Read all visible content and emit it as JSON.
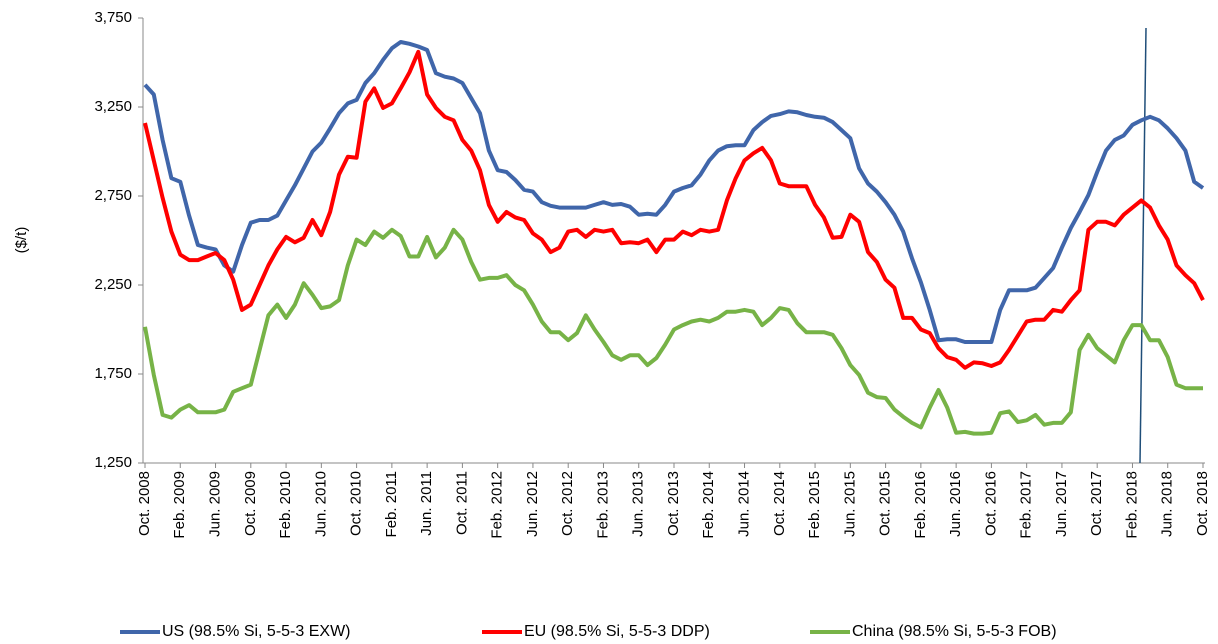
{
  "chart_data": {
    "type": "line",
    "y_label": "($/t)",
    "categories": [
      "Oct. 2008",
      null,
      null,
      null,
      "Feb. 2009",
      null,
      null,
      null,
      "Jun. 2009",
      null,
      null,
      null,
      "Oct. 2009",
      null,
      null,
      null,
      "Feb. 2010",
      null,
      null,
      null,
      "Jun. 2010",
      null,
      null,
      null,
      "Oct. 2010",
      null,
      null,
      null,
      "Feb. 2011",
      null,
      null,
      null,
      "Jun. 2011",
      null,
      null,
      null,
      "Oct. 2011",
      null,
      null,
      null,
      "Feb. 2012",
      null,
      null,
      null,
      "Jun. 2012",
      null,
      null,
      null,
      "Oct. 2012",
      null,
      null,
      null,
      "Feb. 2013",
      null,
      null,
      null,
      "Jun. 2013",
      null,
      null,
      null,
      "Oct. 2013",
      null,
      null,
      null,
      "Feb. 2014",
      null,
      null,
      null,
      "Jun. 2014",
      null,
      null,
      null,
      "Oct. 2014",
      null,
      null,
      null,
      "Feb. 2015",
      null,
      null,
      null,
      "Jun. 2015",
      null,
      null,
      null,
      "Oct. 2015",
      null,
      null,
      null,
      "Feb. 2016",
      null,
      null,
      null,
      "Jun. 2016",
      null,
      null,
      null,
      "Oct. 2016",
      null,
      null,
      null,
      "Feb. 2017",
      null,
      null,
      null,
      "Jun. 2017",
      null,
      null,
      null,
      "Oct. 2017",
      null,
      null,
      null,
      "Feb. 2018",
      null,
      null,
      null,
      "Jun. 2018",
      null,
      null,
      null,
      "Oct. 2018"
    ],
    "series": [
      {
        "name": "US (98.5% Si, 5-5-3 EXW)",
        "color": "#4066aa",
        "values": [
          3375,
          3320,
          3065,
          2850,
          2830,
          2640,
          2475,
          2460,
          2450,
          2360,
          2325,
          2475,
          2600,
          2615,
          2615,
          2640,
          2725,
          2810,
          2905,
          3000,
          3050,
          3130,
          3215,
          3270,
          3290,
          3385,
          3440,
          3515,
          3580,
          3615,
          3605,
          3590,
          3570,
          3440,
          3420,
          3410,
          3385,
          3300,
          3215,
          3005,
          2895,
          2885,
          2840,
          2785,
          2775,
          2715,
          2695,
          2685,
          2685,
          2685,
          2685,
          2700,
          2715,
          2700,
          2705,
          2690,
          2645,
          2650,
          2645,
          2700,
          2775,
          2795,
          2810,
          2870,
          2950,
          3005,
          3030,
          3035,
          3035,
          3120,
          3165,
          3200,
          3210,
          3225,
          3220,
          3205,
          3195,
          3190,
          3165,
          3120,
          3075,
          2905,
          2820,
          2775,
          2715,
          2645,
          2550,
          2400,
          2265,
          2110,
          1940,
          1945,
          1945,
          1930,
          1930,
          1930,
          1930,
          2110,
          2220,
          2220,
          2220,
          2235,
          2290,
          2345,
          2460,
          2570,
          2660,
          2755,
          2885,
          3005,
          3065,
          3090,
          3150,
          3175,
          3195,
          3175,
          3130,
          3075,
          3005,
          2830,
          2795
        ]
      },
      {
        "name": "EU (98.5% Si, 5-5-3 DDP)",
        "color": "#ff0000",
        "values": [
          3160,
          2950,
          2740,
          2550,
          2420,
          2390,
          2390,
          2410,
          2430,
          2390,
          2280,
          2110,
          2140,
          2250,
          2360,
          2450,
          2520,
          2490,
          2515,
          2615,
          2530,
          2660,
          2870,
          2970,
          2965,
          3280,
          3355,
          3245,
          3270,
          3355,
          3445,
          3560,
          3320,
          3245,
          3195,
          3175,
          3065,
          3005,
          2895,
          2700,
          2605,
          2660,
          2630,
          2615,
          2540,
          2505,
          2435,
          2460,
          2550,
          2560,
          2520,
          2560,
          2550,
          2560,
          2485,
          2490,
          2485,
          2505,
          2435,
          2505,
          2505,
          2550,
          2530,
          2560,
          2550,
          2560,
          2725,
          2850,
          2950,
          2990,
          3020,
          2950,
          2820,
          2805,
          2805,
          2805,
          2700,
          2630,
          2515,
          2520,
          2645,
          2605,
          2435,
          2380,
          2280,
          2235,
          2065,
          2065,
          2000,
          1980,
          1895,
          1845,
          1830,
          1785,
          1815,
          1810,
          1795,
          1815,
          1885,
          1965,
          2045,
          2055,
          2055,
          2110,
          2100,
          2165,
          2220,
          2560,
          2605,
          2605,
          2585,
          2645,
          2685,
          2725,
          2685,
          2585,
          2505,
          2360,
          2305,
          2260,
          2165
        ]
      },
      {
        "name": "China (98.5% Si, 5-5-3 FOB)",
        "color": "#77b347",
        "values": [
          2015,
          1745,
          1520,
          1505,
          1550,
          1575,
          1535,
          1535,
          1535,
          1550,
          1650,
          1670,
          1690,
          1885,
          2080,
          2140,
          2065,
          2140,
          2260,
          2195,
          2120,
          2130,
          2165,
          2360,
          2505,
          2475,
          2550,
          2515,
          2560,
          2525,
          2410,
          2410,
          2520,
          2405,
          2460,
          2560,
          2505,
          2380,
          2280,
          2290,
          2290,
          2305,
          2250,
          2220,
          2140,
          2045,
          1985,
          1985,
          1940,
          1980,
          2080,
          2000,
          1930,
          1855,
          1830,
          1855,
          1855,
          1800,
          1840,
          1915,
          2000,
          2025,
          2045,
          2055,
          2045,
          2065,
          2100,
          2100,
          2110,
          2100,
          2025,
          2065,
          2120,
          2110,
          2035,
          1985,
          1985,
          1985,
          1970,
          1895,
          1800,
          1745,
          1645,
          1620,
          1615,
          1550,
          1510,
          1475,
          1450,
          1560,
          1660,
          1560,
          1420,
          1425,
          1415,
          1415,
          1420,
          1530,
          1540,
          1480,
          1490,
          1520,
          1465,
          1475,
          1475,
          1535,
          1885,
          1970,
          1895,
          1855,
          1815,
          1940,
          2025,
          2025,
          1940,
          1940,
          1845,
          1690,
          1670,
          1670,
          1670
        ]
      }
    ],
    "ylim": [
      1250,
      3750
    ],
    "yticks": [
      {
        "value": 1250,
        "label": "1,250"
      },
      {
        "value": 1750,
        "label": "1,750"
      },
      {
        "value": 2250,
        "label": "2,250"
      },
      {
        "value": 2750,
        "label": "2,750"
      },
      {
        "value": 3250,
        "label": "3,250"
      },
      {
        "value": 3750,
        "label": "3,750"
      }
    ],
    "grid": false,
    "legend": "bottom"
  }
}
